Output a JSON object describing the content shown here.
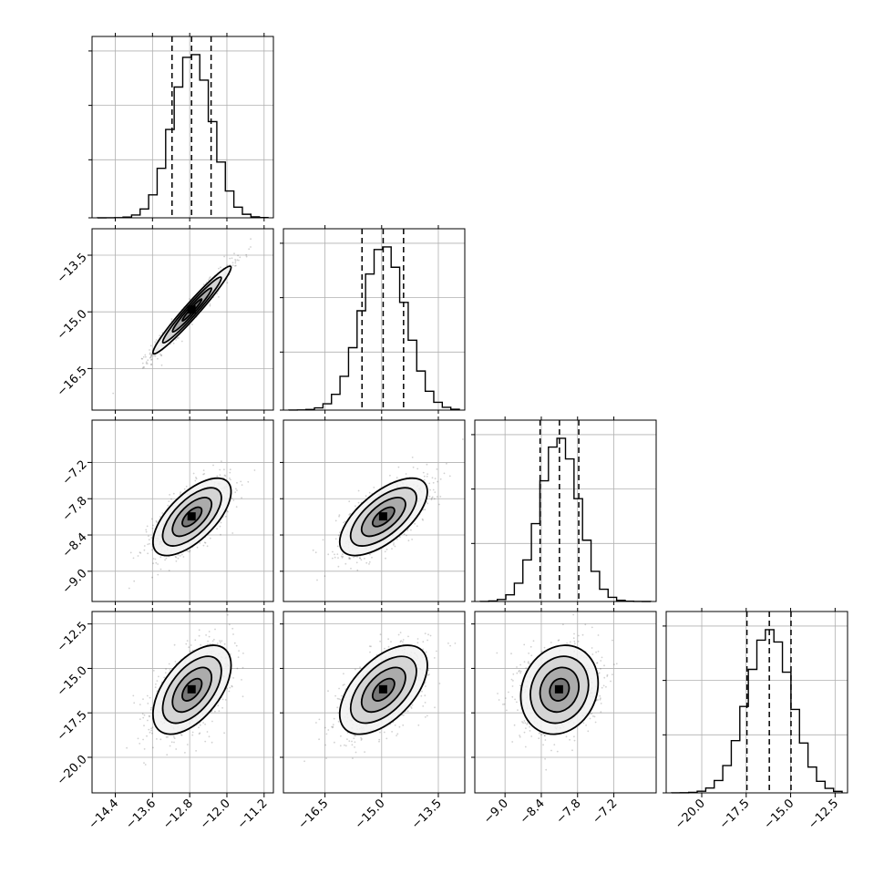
{
  "chart_data": {
    "type": "corner",
    "parameters": [
      {
        "mean": -12.75,
        "sd": 0.42,
        "ticks": [
          -14.4,
          -13.6,
          -12.8,
          -12.0,
          -11.2
        ],
        "tick_labels": [
          "−14.4",
          "−13.6",
          "−12.8",
          "−12.0",
          "−11.2"
        ],
        "range": [
          -14.9,
          -11.0
        ]
      },
      {
        "mean": -14.95,
        "sd": 0.58,
        "ticks": [
          -16.5,
          -15.0,
          -13.5
        ],
        "tick_labels": [
          "−16.5",
          "−15.0",
          "−13.5"
        ],
        "range": [
          -17.6,
          -12.8
        ]
      },
      {
        "mean": -8.1,
        "sd": 0.32,
        "ticks": [
          -9.0,
          -8.4,
          -7.8,
          -7.2
        ],
        "tick_labels": [
          "−9.0",
          "−8.4",
          "−7.8",
          "−7.2"
        ],
        "range": [
          -9.5,
          -6.5
        ]
      },
      {
        "mean": -16.2,
        "sd": 1.25,
        "ticks": [
          -20.0,
          -17.5,
          -15.0,
          -12.5
        ],
        "tick_labels": [
          "−20.0",
          "−17.5",
          "−15.0",
          "−12.5"
        ],
        "range": [
          -22.0,
          -11.8
        ]
      }
    ],
    "quantile_lines": [
      [
        -13.18,
        -12.76,
        -12.34
      ],
      [
        -15.52,
        -14.96,
        -14.42
      ],
      [
        -8.42,
        -8.1,
        -7.78
      ],
      [
        -17.46,
        -16.2,
        -14.98
      ]
    ],
    "correlations": [
      {
        "pair": [
          1,
          0
        ],
        "rho": 0.97
      },
      {
        "pair": [
          2,
          0
        ],
        "rho": 0.65
      },
      {
        "pair": [
          2,
          1
        ],
        "rho": 0.65
      },
      {
        "pair": [
          3,
          0
        ],
        "rho": 0.55
      },
      {
        "pair": [
          3,
          1
        ],
        "rho": 0.55
      },
      {
        "pair": [
          3,
          2
        ],
        "rho": 0.15
      }
    ],
    "contour_levels_sigma": [
      0.5,
      1.0,
      1.5,
      2.0
    ],
    "histogram_bins": 20,
    "grid": true,
    "legend": "none",
    "xlabel": "",
    "ylabel": "",
    "title": ""
  }
}
